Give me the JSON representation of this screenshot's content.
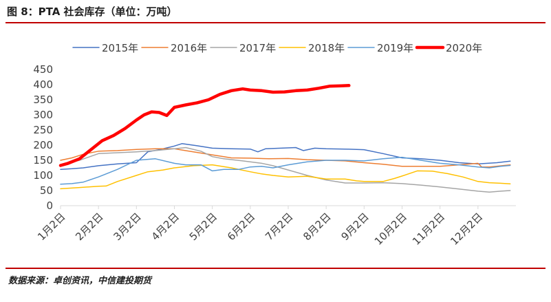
{
  "title": "图 8：PTA 社会库存（单位：万吨）",
  "source": "数据来源：卓创资讯，中信建投期货",
  "chart_data": {
    "type": "line",
    "title": "图 8：PTA 社会库存（单位：万吨）",
    "ylabel": "",
    "xlabel": "",
    "ylim": [
      0,
      450
    ],
    "yticks": [
      0,
      50,
      100,
      150,
      200,
      250,
      300,
      350,
      400,
      450
    ],
    "xlim": [
      1,
      13
    ],
    "xticks": [
      1,
      2,
      3,
      4,
      5,
      6,
      7,
      8,
      9,
      10,
      11,
      12
    ],
    "xtick_labels": [
      "1月2日",
      "2月2日",
      "3月2日",
      "4月2日",
      "5月2日",
      "6月2日",
      "7月2日",
      "8月2日",
      "9月2日",
      "10月2日",
      "11月2日",
      "12月2日"
    ],
    "x_unit": "month (1 = 1月2日)",
    "grid": false,
    "legend_position": "top",
    "series": [
      {
        "name": "2015年",
        "color": "#4472c4",
        "width": 1.5,
        "points": [
          [
            1.0,
            120
          ],
          [
            1.3,
            122
          ],
          [
            1.6,
            125
          ],
          [
            2.0,
            132
          ],
          [
            2.5,
            138
          ],
          [
            3.0,
            142
          ],
          [
            3.3,
            178
          ],
          [
            3.6,
            185
          ],
          [
            4.0,
            197
          ],
          [
            4.2,
            205
          ],
          [
            4.6,
            198
          ],
          [
            5.0,
            190
          ],
          [
            5.5,
            188
          ],
          [
            6.0,
            187
          ],
          [
            6.2,
            178
          ],
          [
            6.4,
            188
          ],
          [
            6.8,
            190
          ],
          [
            7.2,
            192
          ],
          [
            7.4,
            182
          ],
          [
            7.7,
            190
          ],
          [
            8.0,
            188
          ],
          [
            8.5,
            187
          ],
          [
            9.0,
            185
          ],
          [
            9.5,
            172
          ],
          [
            10.0,
            158
          ],
          [
            10.5,
            155
          ],
          [
            11.0,
            150
          ],
          [
            11.5,
            142
          ],
          [
            12.0,
            138
          ],
          [
            12.5,
            142
          ],
          [
            12.85,
            147
          ]
        ]
      },
      {
        "name": "2016年",
        "color": "#ed7d31",
        "width": 1.5,
        "points": [
          [
            1.0,
            150
          ],
          [
            1.3,
            158
          ],
          [
            1.6,
            170
          ],
          [
            2.0,
            180
          ],
          [
            2.5,
            182
          ],
          [
            3.0,
            186
          ],
          [
            3.5,
            188
          ],
          [
            4.0,
            188
          ],
          [
            4.5,
            178
          ],
          [
            5.0,
            168
          ],
          [
            5.5,
            158
          ],
          [
            6.0,
            157
          ],
          [
            6.5,
            155
          ],
          [
            7.0,
            156
          ],
          [
            7.5,
            152
          ],
          [
            8.0,
            150
          ],
          [
            8.5,
            148
          ],
          [
            9.0,
            142
          ],
          [
            9.5,
            137
          ],
          [
            10.0,
            130
          ],
          [
            10.5,
            130
          ],
          [
            11.0,
            130
          ],
          [
            11.5,
            135
          ],
          [
            12.0,
            140
          ],
          [
            12.1,
            128
          ],
          [
            12.3,
            128
          ],
          [
            12.85,
            135
          ]
        ]
      },
      {
        "name": "2017年",
        "color": "#a5a5a5",
        "width": 1.5,
        "points": [
          [
            1.0,
            135
          ],
          [
            1.5,
            150
          ],
          [
            2.0,
            172
          ],
          [
            2.5,
            175
          ],
          [
            3.0,
            178
          ],
          [
            3.5,
            182
          ],
          [
            4.0,
            188
          ],
          [
            4.3,
            192
          ],
          [
            4.7,
            180
          ],
          [
            5.0,
            162
          ],
          [
            5.3,
            155
          ],
          [
            5.8,
            148
          ],
          [
            6.3,
            140
          ],
          [
            6.6,
            132
          ],
          [
            7.0,
            118
          ],
          [
            7.5,
            100
          ],
          [
            8.0,
            85
          ],
          [
            8.5,
            75
          ],
          [
            9.0,
            75
          ],
          [
            9.5,
            76
          ],
          [
            10.0,
            73
          ],
          [
            10.5,
            68
          ],
          [
            11.0,
            62
          ],
          [
            11.5,
            55
          ],
          [
            12.0,
            48
          ],
          [
            12.3,
            45
          ],
          [
            12.6,
            48
          ],
          [
            12.85,
            50
          ]
        ]
      },
      {
        "name": "2018年",
        "color": "#ffc000",
        "width": 1.5,
        "points": [
          [
            1.0,
            56
          ],
          [
            1.5,
            60
          ],
          [
            2.0,
            64
          ],
          [
            2.2,
            65
          ],
          [
            2.5,
            80
          ],
          [
            3.0,
            100
          ],
          [
            3.3,
            112
          ],
          [
            3.7,
            118
          ],
          [
            4.0,
            125
          ],
          [
            4.5,
            132
          ],
          [
            5.0,
            135
          ],
          [
            5.5,
            125
          ],
          [
            6.0,
            112
          ],
          [
            6.3,
            105
          ],
          [
            6.6,
            100
          ],
          [
            7.0,
            95
          ],
          [
            7.5,
            97
          ],
          [
            8.0,
            88
          ],
          [
            8.5,
            88
          ],
          [
            8.8,
            82
          ],
          [
            9.0,
            80
          ],
          [
            9.5,
            80
          ],
          [
            9.8,
            90
          ],
          [
            10.0,
            98
          ],
          [
            10.4,
            115
          ],
          [
            10.8,
            114
          ],
          [
            11.2,
            106
          ],
          [
            11.6,
            95
          ],
          [
            12.0,
            80
          ],
          [
            12.3,
            76
          ],
          [
            12.6,
            74
          ],
          [
            12.85,
            72
          ]
        ]
      },
      {
        "name": "2019年",
        "color": "#5b9bd5",
        "width": 1.5,
        "points": [
          [
            1.0,
            71
          ],
          [
            1.3,
            73
          ],
          [
            1.6,
            78
          ],
          [
            2.0,
            95
          ],
          [
            2.5,
            120
          ],
          [
            3.0,
            150
          ],
          [
            3.5,
            155
          ],
          [
            4.0,
            140
          ],
          [
            4.3,
            135
          ],
          [
            4.7,
            135
          ],
          [
            5.0,
            115
          ],
          [
            5.3,
            120
          ],
          [
            5.7,
            120
          ],
          [
            6.0,
            128
          ],
          [
            6.3,
            130
          ],
          [
            6.6,
            125
          ],
          [
            7.0,
            135
          ],
          [
            7.5,
            145
          ],
          [
            8.0,
            150
          ],
          [
            8.5,
            150
          ],
          [
            9.0,
            148
          ],
          [
            9.5,
            155
          ],
          [
            10.0,
            160
          ],
          [
            10.5,
            150
          ],
          [
            11.0,
            140
          ],
          [
            11.5,
            135
          ],
          [
            12.0,
            128
          ],
          [
            12.3,
            125
          ],
          [
            12.6,
            130
          ],
          [
            12.85,
            133
          ]
        ]
      },
      {
        "name": "2020年",
        "color": "#ff0000",
        "width": 4.5,
        "points": [
          [
            1.0,
            133
          ],
          [
            1.2,
            140
          ],
          [
            1.5,
            155
          ],
          [
            1.8,
            185
          ],
          [
            2.1,
            215
          ],
          [
            2.4,
            232
          ],
          [
            2.7,
            255
          ],
          [
            3.0,
            283
          ],
          [
            3.2,
            300
          ],
          [
            3.4,
            310
          ],
          [
            3.6,
            308
          ],
          [
            3.8,
            298
          ],
          [
            4.0,
            325
          ],
          [
            4.3,
            333
          ],
          [
            4.6,
            340
          ],
          [
            4.9,
            350
          ],
          [
            5.2,
            368
          ],
          [
            5.5,
            380
          ],
          [
            5.8,
            386
          ],
          [
            6.0,
            382
          ],
          [
            6.3,
            380
          ],
          [
            6.6,
            375
          ],
          [
            6.9,
            376
          ],
          [
            7.2,
            380
          ],
          [
            7.5,
            382
          ],
          [
            7.8,
            388
          ],
          [
            8.1,
            395
          ],
          [
            8.4,
            396
          ],
          [
            8.6,
            397
          ]
        ]
      }
    ]
  }
}
